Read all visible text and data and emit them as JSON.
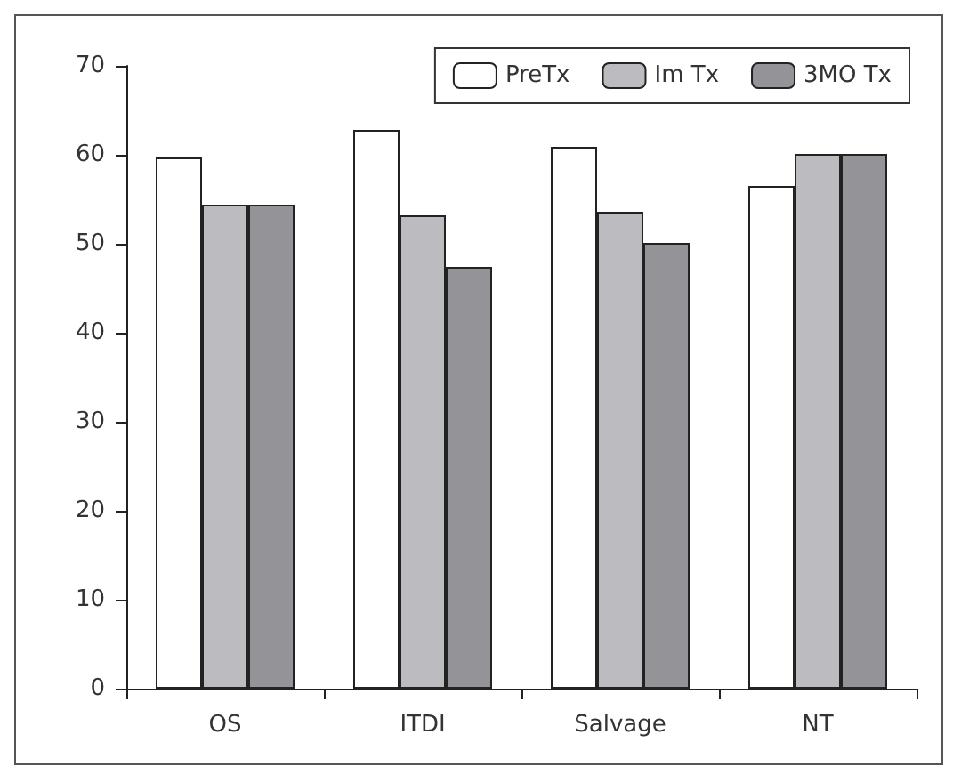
{
  "chart_data": {
    "type": "bar",
    "categories": [
      "OS",
      "ITDI",
      "Salvage",
      "NT"
    ],
    "series": [
      {
        "name": "PreTx",
        "color": "#ffffff",
        "values": [
          59.7,
          62.8,
          60.9,
          56.5
        ]
      },
      {
        "name": "Im Tx",
        "color": "#bcbcc0",
        "values": [
          54.4,
          53.2,
          53.6,
          60.1
        ]
      },
      {
        "name": "3MO Tx",
        "color": "#939398",
        "values": [
          54.4,
          47.4,
          50.1,
          60.1
        ]
      }
    ],
    "ylim": [
      0,
      70
    ],
    "yticks": [
      0,
      10,
      20,
      30,
      40,
      50,
      60,
      70
    ],
    "grid": false,
    "legend": "top right"
  }
}
